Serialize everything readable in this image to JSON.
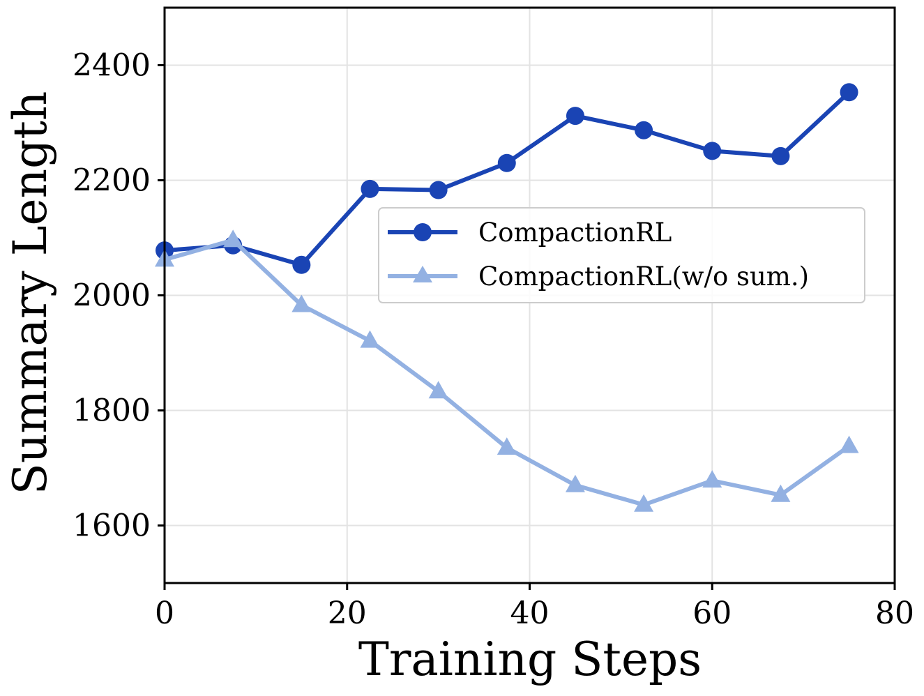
{
  "chart_data": {
    "type": "line",
    "title": "",
    "xlabel": "Training Steps",
    "ylabel": "Summary Length",
    "xlim": [
      0,
      80
    ],
    "ylim": [
      1500,
      2500
    ],
    "xticks": [
      0,
      20,
      40,
      60,
      80
    ],
    "yticks": [
      1600,
      1800,
      2000,
      2200,
      2400
    ],
    "grid": true,
    "legend_position": "center-right",
    "x": [
      0,
      7.5,
      15,
      22.5,
      30,
      37.5,
      45,
      52.5,
      60,
      67.5,
      75
    ],
    "series": [
      {
        "name": "CompactionRL",
        "marker": "circle",
        "color": "#1a44b4",
        "values": [
          2078,
          2087,
          2053,
          2185,
          2183,
          2230,
          2312,
          2287,
          2251,
          2242,
          2353
        ]
      },
      {
        "name": "CompactionRL(w/o sum.)",
        "marker": "triangle",
        "color": "#93b1e2",
        "values": [
          2062,
          2096,
          1983,
          1921,
          1833,
          1735,
          1670,
          1636,
          1678,
          1653,
          1738
        ]
      }
    ]
  }
}
